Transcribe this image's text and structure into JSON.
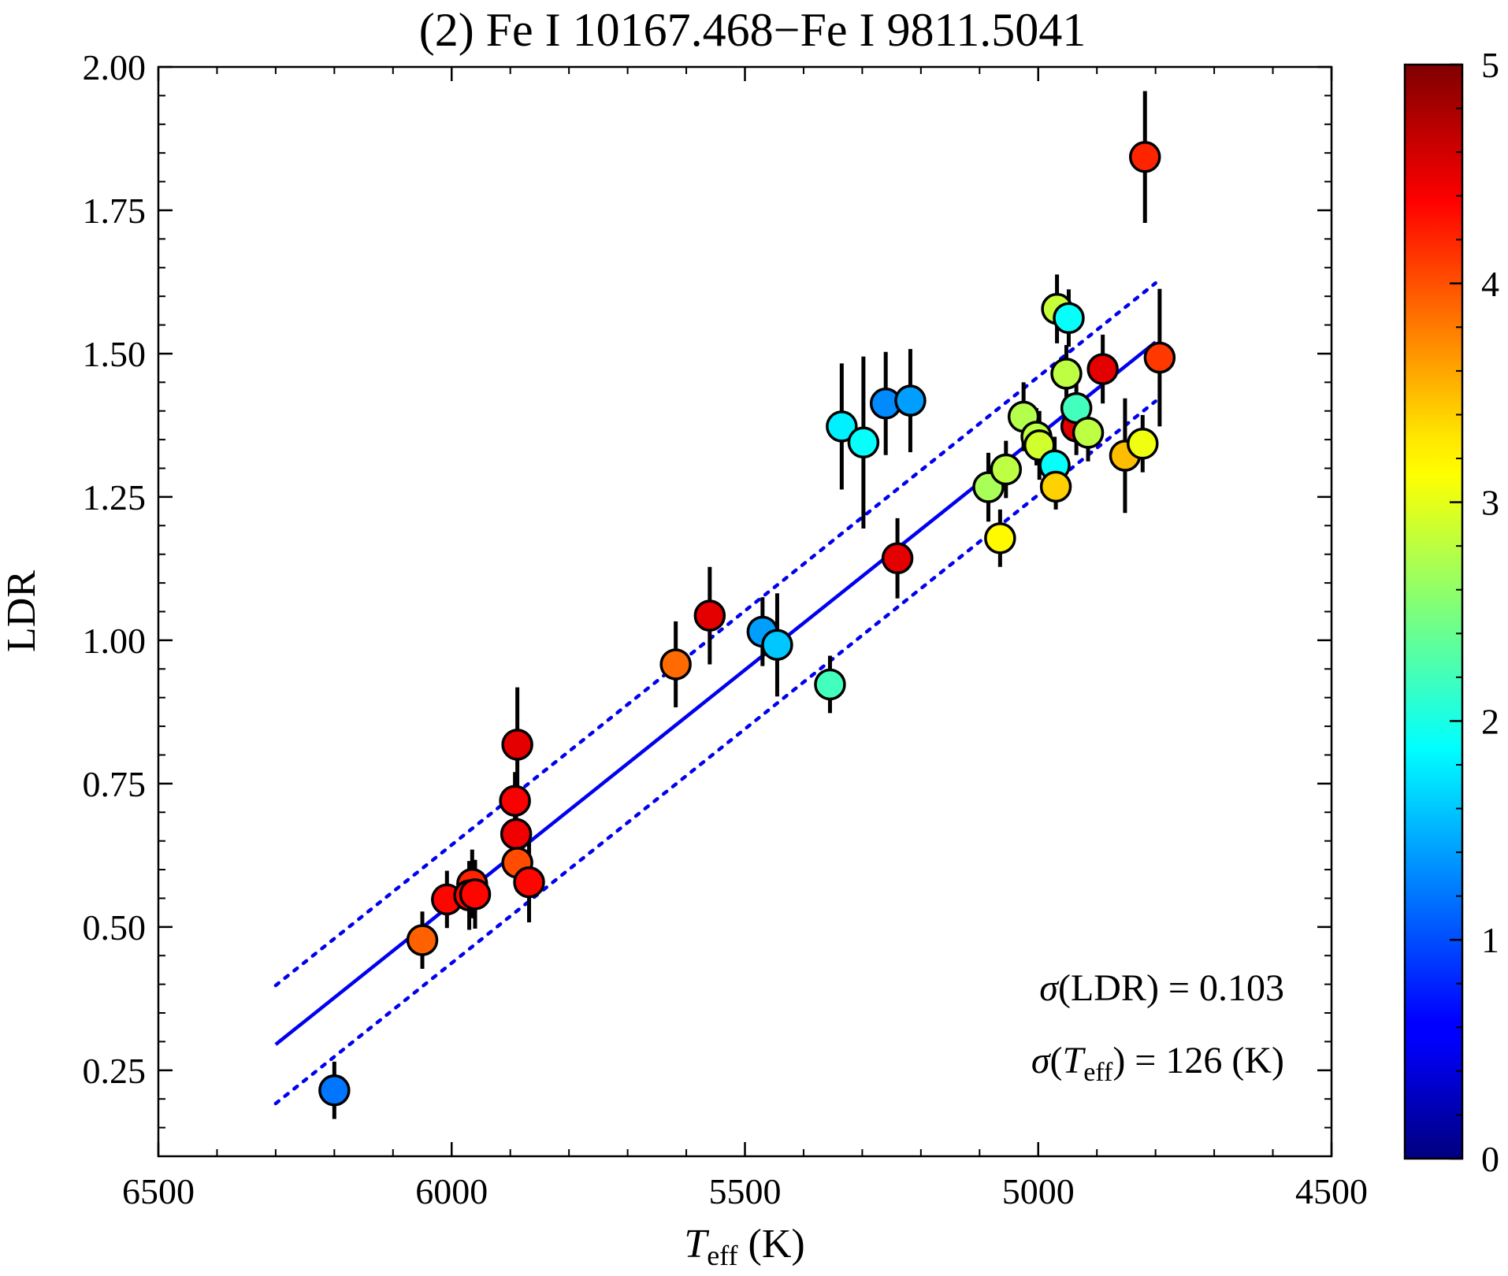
{
  "chart_data": {
    "type": "scatter",
    "title": "(2) Fe I 10167.468−Fe I 9811.5041",
    "xlabel": "T_eff (K)",
    "xlabel_main": "T",
    "xlabel_sub": "eff",
    "xlabel_unit": " (K)",
    "ylabel": "LDR",
    "xlim": [
      6500,
      4500
    ],
    "ylim": [
      0.1,
      2.0
    ],
    "x_inverted": true,
    "xticks": [
      6500,
      6000,
      5500,
      5000,
      4500
    ],
    "xtick_labels": [
      "6500",
      "6000",
      "5500",
      "5000",
      "4500"
    ],
    "yticks": [
      0.25,
      0.5,
      0.75,
      1.0,
      1.25,
      1.5,
      1.75,
      2.0
    ],
    "ytick_labels": [
      "0.25",
      "0.50",
      "0.75",
      "1.00",
      "1.25",
      "1.50",
      "1.75",
      "2.00"
    ],
    "grid": false,
    "colorbar": {
      "range": [
        0,
        5
      ],
      "ticks": [
        0,
        1,
        2,
        3,
        4,
        5
      ],
      "tick_labels": [
        "0",
        "1",
        "2",
        "3",
        "4",
        "5"
      ],
      "colormap": "jet"
    },
    "fit_line": {
      "x": [
        6300,
        4800
      ],
      "y": [
        0.295,
        1.52
      ]
    },
    "upper_band": {
      "x": [
        6300,
        4800
      ],
      "y": [
        0.398,
        1.623
      ]
    },
    "lower_band": {
      "x": [
        6300,
        4800
      ],
      "y": [
        0.192,
        1.417
      ]
    },
    "annotations": {
      "sigma_ldr": "σ(LDR) = 0.103",
      "sigma_ldr_prefix": "σ",
      "sigma_ldr_rest": "(LDR) = 0.103",
      "sigma_teff": "σ(T_eff) = 126 (K)",
      "sigma_teff_prefix": "σ",
      "sigma_teff_open": "(",
      "sigma_teff_T": "T",
      "sigma_teff_sub": "eff",
      "sigma_teff_rest": ") = 126 (K)"
    },
    "points": [
      {
        "x": 6200,
        "y": 0.215,
        "err": 0.05,
        "c": 1.2
      },
      {
        "x": 6050,
        "y": 0.477,
        "err": 0.05,
        "c": 3.9
      },
      {
        "x": 6008,
        "y": 0.548,
        "err": 0.05,
        "c": 4.35
      },
      {
        "x": 5965,
        "y": 0.575,
        "err": 0.06,
        "c": 4.2
      },
      {
        "x": 5970,
        "y": 0.555,
        "err": 0.06,
        "c": 4.35
      },
      {
        "x": 5960,
        "y": 0.557,
        "err": 0.06,
        "c": 4.35
      },
      {
        "x": 5888,
        "y": 0.818,
        "err": 0.1,
        "c": 4.5
      },
      {
        "x": 5892,
        "y": 0.72,
        "err": 0.05,
        "c": 4.4
      },
      {
        "x": 5890,
        "y": 0.662,
        "err": 0.05,
        "c": 4.45
      },
      {
        "x": 5888,
        "y": 0.612,
        "err": 0.05,
        "c": 4.0
      },
      {
        "x": 5868,
        "y": 0.578,
        "err": 0.07,
        "c": 4.35
      },
      {
        "x": 5618,
        "y": 0.958,
        "err": 0.075,
        "c": 3.85
      },
      {
        "x": 5560,
        "y": 1.043,
        "err": 0.085,
        "c": 4.5
      },
      {
        "x": 5470,
        "y": 1.015,
        "err": 0.06,
        "c": 1.4
      },
      {
        "x": 5445,
        "y": 0.992,
        "err": 0.09,
        "c": 1.6
      },
      {
        "x": 5355,
        "y": 0.923,
        "err": 0.05,
        "c": 2.2
      },
      {
        "x": 5335,
        "y": 1.373,
        "err": 0.11,
        "c": 1.8
      },
      {
        "x": 5298,
        "y": 1.345,
        "err": 0.15,
        "c": 1.9
      },
      {
        "x": 5260,
        "y": 1.413,
        "err": 0.09,
        "c": 1.3
      },
      {
        "x": 5218,
        "y": 1.418,
        "err": 0.09,
        "c": 1.4
      },
      {
        "x": 5240,
        "y": 1.143,
        "err": 0.07,
        "c": 4.5
      },
      {
        "x": 5085,
        "y": 1.267,
        "err": 0.06,
        "c": 2.7
      },
      {
        "x": 5055,
        "y": 1.298,
        "err": 0.05,
        "c": 2.8
      },
      {
        "x": 5065,
        "y": 1.178,
        "err": 0.05,
        "c": 3.15
      },
      {
        "x": 5025,
        "y": 1.39,
        "err": 0.06,
        "c": 2.75
      },
      {
        "x": 5003,
        "y": 1.355,
        "err": 0.05,
        "c": 2.8
      },
      {
        "x": 4998,
        "y": 1.34,
        "err": 0.06,
        "c": 2.9
      },
      {
        "x": 4972,
        "y": 1.305,
        "err": 0.05,
        "c": 1.9
      },
      {
        "x": 4970,
        "y": 1.268,
        "err": 0.04,
        "c": 3.35
      },
      {
        "x": 4968,
        "y": 1.578,
        "err": 0.06,
        "c": 2.85
      },
      {
        "x": 4948,
        "y": 1.562,
        "err": 0.05,
        "c": 1.9
      },
      {
        "x": 4952,
        "y": 1.465,
        "err": 0.05,
        "c": 2.8
      },
      {
        "x": 4935,
        "y": 1.373,
        "err": 0.05,
        "c": 4.5
      },
      {
        "x": 4935,
        "y": 1.405,
        "err": 0.05,
        "c": 2.2
      },
      {
        "x": 4915,
        "y": 1.362,
        "err": 0.05,
        "c": 2.8
      },
      {
        "x": 4890,
        "y": 1.473,
        "err": 0.06,
        "c": 4.5
      },
      {
        "x": 4852,
        "y": 1.322,
        "err": 0.1,
        "c": 3.45
      },
      {
        "x": 4822,
        "y": 1.343,
        "err": 0.05,
        "c": 3.05
      },
      {
        "x": 4818,
        "y": 1.843,
        "err": 0.115,
        "c": 4.2
      },
      {
        "x": 4793,
        "y": 1.493,
        "err": 0.12,
        "c": 4.1
      }
    ]
  }
}
